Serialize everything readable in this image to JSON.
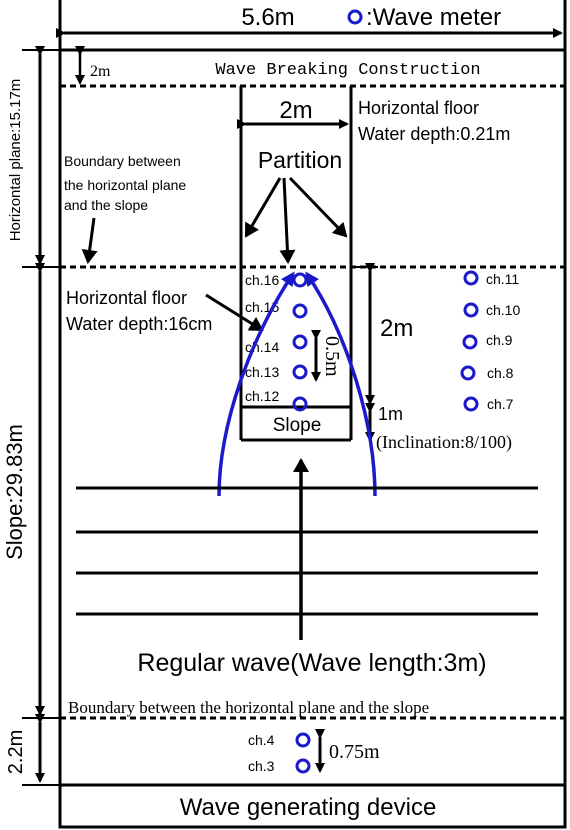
{
  "header": {
    "width_label": "5.6m",
    "legend_label": ":Wave meter"
  },
  "top_zone": {
    "gap_label": "2m",
    "construction_label": "Wave Breaking Construction",
    "partition_width_label": "2m",
    "floor_label_line1": "Horizontal floor",
    "floor_label_line2": "Water depth:0.21m",
    "partition_label": "Partition",
    "boundary_label_line1": "Boundary between",
    "boundary_label_line2": "the horizontal plane",
    "boundary_label_line3": "and the slope"
  },
  "left_dimensions": {
    "horizontal_plane": "Horizontal plane:15.17m",
    "slope": "Slope:29.83m",
    "bottom": "2.2m"
  },
  "channel": {
    "floor_label_line1": "Horizontal floor",
    "floor_label_line2": "Water depth:16cm",
    "spacing_label": "0.5m",
    "length_label": "2m",
    "slope_label": "Slope",
    "slope_length_label": "1m",
    "inclination_label": "(Inclination:8/100)"
  },
  "gauges": {
    "inner": [
      "ch.16",
      "ch.15",
      "ch.14",
      "ch.13",
      "ch.12"
    ],
    "outer": [
      "ch.11",
      "ch.10",
      "ch.9",
      "ch.8",
      "ch.7"
    ],
    "bottom": [
      "ch.4",
      "ch.3"
    ]
  },
  "wave_label": "Regular wave(Wave length:3m)",
  "lower_boundary_label": "Boundary between the horizontal plane and the slope",
  "bottom_spacing_label": "0.75m",
  "generator_label": "Wave generating device",
  "colors": {
    "line": "#000000",
    "gauge": "#1a1acc",
    "flow_arrow": "#1a1acc"
  }
}
